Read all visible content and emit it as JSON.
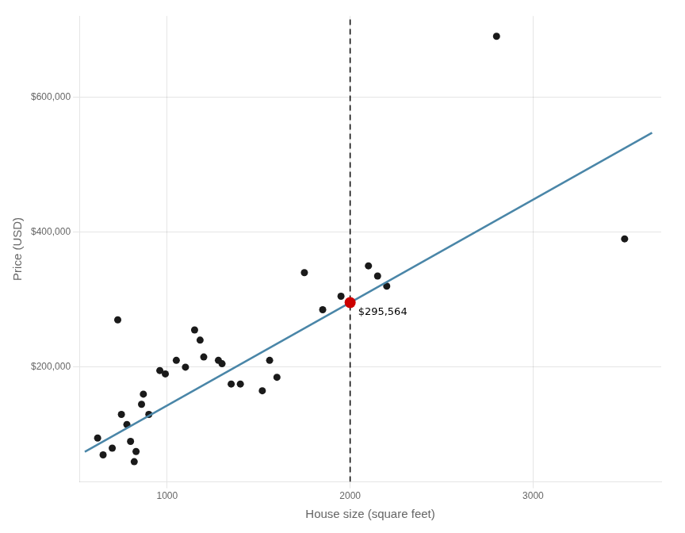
{
  "chart_data": {
    "type": "scatter",
    "xlabel": "House size (square feet)",
    "ylabel": "Price (USD)",
    "xlim": [
      520,
      3700
    ],
    "ylim": [
      30000,
      720000
    ],
    "xticks": [
      1000,
      2000,
      3000
    ],
    "yticks": [
      {
        "value": 200000,
        "label": "$200,000"
      },
      {
        "value": 400000,
        "label": "$400,000"
      },
      {
        "value": 600000,
        "label": "$600,000"
      }
    ],
    "grid": true,
    "series": [
      {
        "type": "scatter",
        "color": "#1a1a1a",
        "x": [
          620,
          650,
          700,
          730,
          750,
          780,
          800,
          820,
          830,
          860,
          870,
          900,
          960,
          990,
          1050,
          1100,
          1150,
          1180,
          1200,
          1280,
          1300,
          1350,
          1400,
          1520,
          1560,
          1600,
          1750,
          1850,
          1950,
          2100,
          2150,
          2200,
          2800,
          3500
        ],
        "values": [
          95000,
          70000,
          80000,
          270000,
          130000,
          115000,
          90000,
          60000,
          75000,
          145000,
          160000,
          130000,
          195000,
          190000,
          210000,
          200000,
          255000,
          240000,
          215000,
          210000,
          205000,
          175000,
          175000,
          165000,
          210000,
          185000,
          340000,
          285000,
          305000,
          350000,
          335000,
          320000,
          690000,
          390000
        ]
      },
      {
        "type": "line",
        "color": "#4a86a8",
        "x": [
          550,
          3650
        ],
        "values": [
          74620,
          547060
        ]
      },
      {
        "type": "vline",
        "color": "#000000",
        "line_style": "dashed",
        "x": [
          2000
        ]
      },
      {
        "type": "scatter",
        "color": "#cc0000",
        "x": [
          2000
        ],
        "values": [
          295564
        ]
      }
    ],
    "annotations": [
      {
        "text": "$295,564",
        "x": 2000,
        "y": 295564
      }
    ]
  }
}
